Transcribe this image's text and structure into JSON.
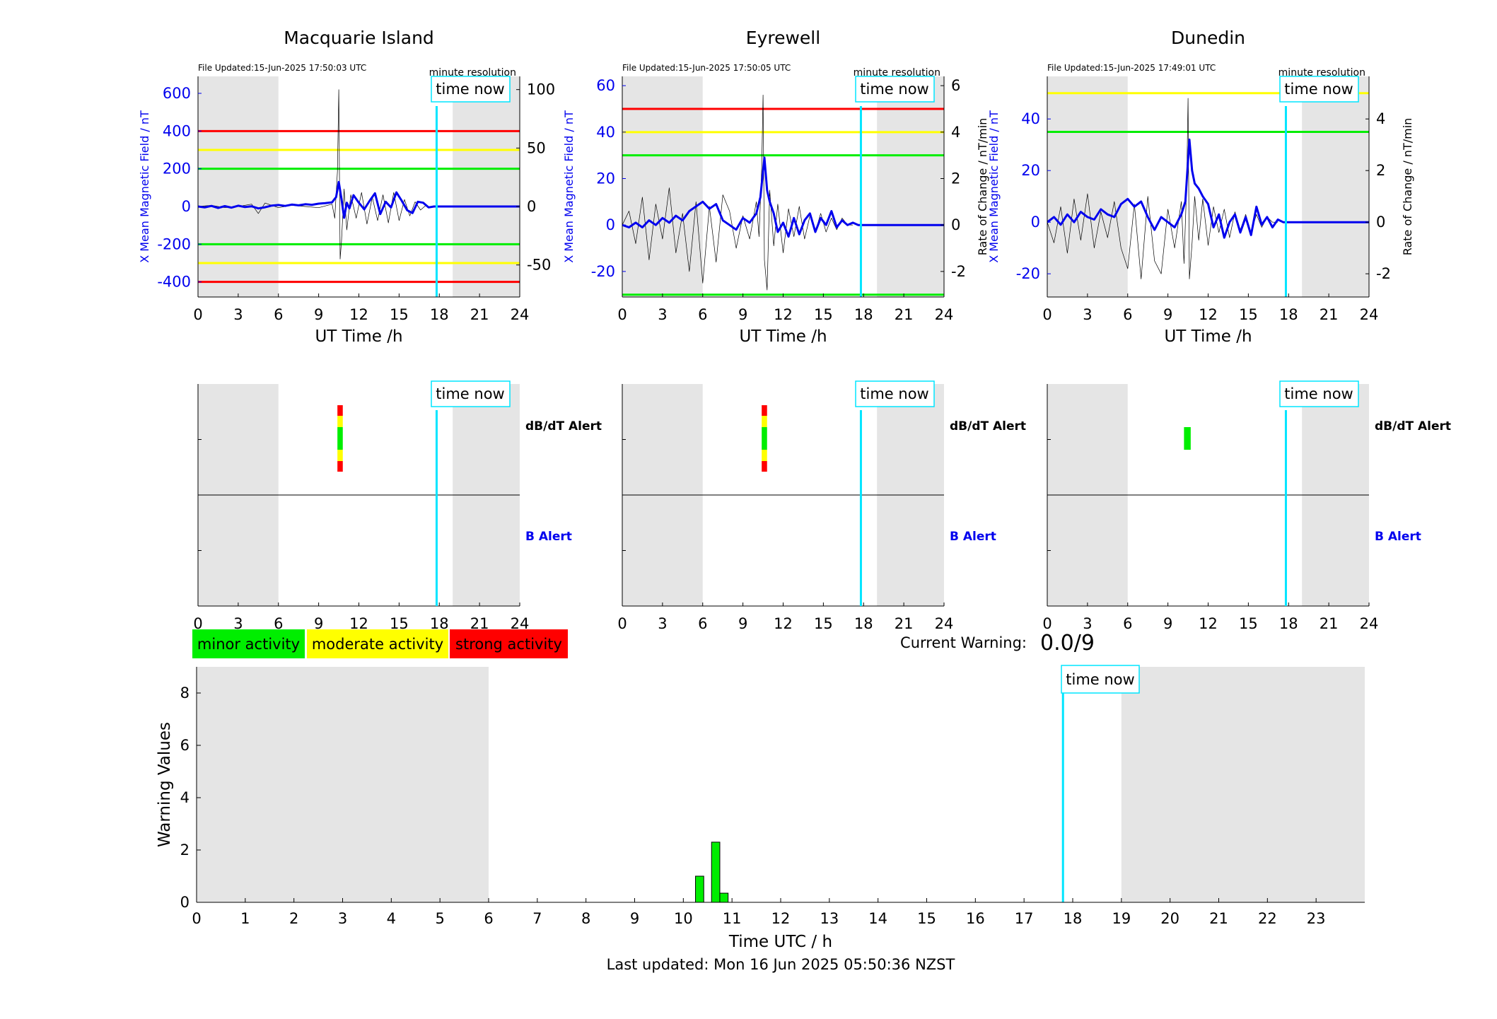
{
  "chart_data": [
    {
      "type": "line",
      "title": "Macquarie Island",
      "file_updated": "File Updated:15-Jun-2025 17:50:03 UTC",
      "resolution_label": "minute resolution",
      "time_now_label": "time now",
      "time_now": 17.8,
      "night_shading": [
        [
          0,
          6
        ],
        [
          19,
          24
        ]
      ],
      "xlabel": "UT Time /h",
      "xlim": [
        0,
        24
      ],
      "xticks": [
        0,
        3,
        6,
        9,
        12,
        15,
        18,
        21,
        24
      ],
      "ylabel_left": "X Mean Magnetic Field / nT",
      "ylim_left": [
        -480,
        690
      ],
      "yticks_left": [
        -400,
        -200,
        0,
        200,
        400,
        600
      ],
      "ylabel_right": "",
      "ylim_right": [
        -77.4,
        111.3
      ],
      "yticks_right": [
        -50,
        0,
        50,
        100
      ],
      "thresholds_left": [
        {
          "value": 400,
          "color": "#ff0000"
        },
        {
          "value": 300,
          "color": "#ffff00"
        },
        {
          "value": 200,
          "color": "#00ee00"
        },
        {
          "value": -200,
          "color": "#00ee00"
        },
        {
          "value": -300,
          "color": "#ffff00"
        },
        {
          "value": -400,
          "color": "#ff0000"
        }
      ],
      "series": [
        {
          "axis": "left",
          "color": "#0000ee",
          "width": 3,
          "x": [
            0,
            0.5,
            1,
            1.5,
            2,
            2.5,
            3,
            3.5,
            4,
            4.5,
            5,
            5.5,
            6,
            6.5,
            7,
            7.5,
            8,
            8.5,
            9,
            9.5,
            10,
            10.3,
            10.5,
            10.7,
            10.9,
            11.1,
            11.3,
            11.6,
            12,
            12.4,
            12.8,
            13.2,
            13.6,
            14,
            14.4,
            14.8,
            15.2,
            15.6,
            16,
            16.4,
            16.8,
            17.2,
            17.6,
            18,
            24
          ],
          "y": [
            0,
            -5,
            3,
            -8,
            2,
            -6,
            4,
            -3,
            1,
            -10,
            -4,
            5,
            8,
            3,
            10,
            6,
            12,
            9,
            15,
            18,
            22,
            50,
            130,
            40,
            -60,
            20,
            -10,
            60,
            20,
            -15,
            30,
            70,
            -40,
            25,
            -5,
            75,
            30,
            -20,
            -35,
            25,
            20,
            -5,
            0,
            0,
            0
          ]
        },
        {
          "axis": "right",
          "color": "#000000",
          "width": 0.7,
          "x": [
            0,
            1,
            2,
            3,
            4,
            4.5,
            5,
            6,
            7,
            8,
            9,
            10,
            10.2,
            10.4,
            10.5,
            10.6,
            10.7,
            10.9,
            11.1,
            11.4,
            11.8,
            12.2,
            12.6,
            13,
            13.4,
            13.8,
            14.2,
            14.6,
            15,
            15.4,
            15.8,
            16.2,
            16.6,
            17
          ],
          "y": [
            0,
            1,
            -1,
            0,
            2,
            -6,
            3,
            -1,
            1,
            0,
            -1,
            2,
            -10,
            30,
            100,
            -45,
            -30,
            15,
            -20,
            10,
            -10,
            12,
            -15,
            8,
            -12,
            10,
            -14,
            12,
            -12,
            6,
            -8,
            4,
            -3,
            1
          ]
        }
      ],
      "alerts": {
        "dbdt_label": "dB/dT Alert",
        "b_label": "B Alert",
        "dbdt_bar": {
          "x": [
            10.4,
            10.8
          ],
          "colors_top_to_bottom": [
            "#ff0000",
            "#ffff00",
            "#00ee00",
            "#ffff00",
            "#ff0000"
          ]
        }
      }
    },
    {
      "type": "line",
      "title": "Eyrewell",
      "file_updated": "File Updated:15-Jun-2025 17:50:05 UTC",
      "resolution_label": "minute resolution",
      "time_now_label": "time now",
      "time_now": 17.8,
      "night_shading": [
        [
          0,
          6
        ],
        [
          19,
          24
        ]
      ],
      "xlabel": "UT Time /h",
      "xlim": [
        0,
        24
      ],
      "xticks": [
        0,
        3,
        6,
        9,
        12,
        15,
        18,
        21,
        24
      ],
      "ylabel_left": "X Mean Magnetic Field / nT",
      "ylim_left": [
        -31,
        64
      ],
      "yticks_left": [
        -20,
        0,
        20,
        40,
        60
      ],
      "ylabel_right": "Rate of Change / nT/min",
      "ylim_right": [
        -3.1,
        6.4
      ],
      "yticks_right": [
        -2,
        0,
        2,
        4,
        6
      ],
      "thresholds_left": [
        {
          "value": 50,
          "color": "#ff0000"
        },
        {
          "value": 40,
          "color": "#ffff00"
        },
        {
          "value": 30,
          "color": "#00ee00"
        },
        {
          "value": -30,
          "color": "#00ee00"
        }
      ],
      "series": [
        {
          "axis": "left",
          "color": "#0000ee",
          "width": 3,
          "x": [
            0,
            0.5,
            1,
            1.5,
            2,
            2.5,
            3,
            3.5,
            4,
            4.5,
            5,
            5.5,
            6,
            6.5,
            7,
            7.5,
            8,
            8.5,
            9,
            9.5,
            10,
            10.3,
            10.6,
            10.8,
            11,
            11.3,
            11.6,
            12,
            12.4,
            12.8,
            13.2,
            13.6,
            14,
            14.4,
            14.8,
            15.2,
            15.6,
            16,
            16.4,
            16.8,
            17.2,
            17.6,
            18,
            24
          ],
          "y": [
            0,
            -1,
            1,
            -1,
            2,
            0,
            3,
            1,
            4,
            2,
            6,
            8,
            10,
            7,
            9,
            2,
            0,
            -2,
            3,
            1,
            5,
            12,
            29,
            15,
            10,
            5,
            -3,
            1,
            -5,
            3,
            -4,
            2,
            5,
            -3,
            3,
            0,
            6,
            -1,
            2,
            0,
            1,
            0,
            0,
            0
          ]
        },
        {
          "axis": "right",
          "color": "#000000",
          "width": 0.7,
          "x": [
            0,
            0.5,
            1,
            1.5,
            2,
            2.5,
            3,
            3.5,
            4,
            4.5,
            5,
            5.5,
            6,
            6.5,
            7,
            7.5,
            8,
            8.5,
            9,
            9.5,
            10,
            10.2,
            10.4,
            10.5,
            10.6,
            10.8,
            11,
            11.3,
            11.6,
            12,
            12.4,
            12.8,
            13.2,
            13.6,
            14,
            14.4,
            14.8,
            15.2,
            15.6,
            16,
            16.4,
            16.8,
            17.2
          ],
          "y": [
            0,
            0.6,
            -0.8,
            1.2,
            -1.5,
            0.9,
            -0.6,
            1.6,
            -1.2,
            0.5,
            -2,
            1,
            -2.5,
            0.8,
            -1.6,
            1.3,
            0.6,
            -1,
            0.4,
            -0.6,
            1,
            -0.5,
            2.5,
            5.6,
            -1.5,
            -2.8,
            1.5,
            -0.9,
            0.9,
            -1.2,
            0.7,
            -0.5,
            0.8,
            -0.6,
            0.4,
            -0.3,
            0.5,
            -0.3,
            0.3,
            -0.2,
            0.3,
            0,
            0
          ]
        }
      ],
      "alerts": {
        "dbdt_label": "dB/dT Alert",
        "b_label": "B Alert",
        "dbdt_bar": {
          "x": [
            10.4,
            10.8
          ],
          "colors_top_to_bottom": [
            "#ff0000",
            "#ffff00",
            "#00ee00",
            "#ffff00",
            "#ff0000"
          ]
        }
      }
    },
    {
      "type": "line",
      "title": "Dunedin",
      "file_updated": "File Updated:15-Jun-2025 17:49:01 UTC",
      "resolution_label": "minute resolution",
      "time_now_label": "time now",
      "time_now": 17.8,
      "night_shading": [
        [
          0,
          6
        ],
        [
          19,
          24
        ]
      ],
      "xlabel": "UT Time /h",
      "xlim": [
        0,
        24
      ],
      "xticks": [
        0,
        3,
        6,
        9,
        12,
        15,
        18,
        21,
        24
      ],
      "ylabel_left": "X Mean Magnetic Field / nT",
      "ylim_left": [
        -29,
        56.5
      ],
      "yticks_left": [
        -20,
        0,
        20,
        40
      ],
      "ylabel_right": "Rate of Change / nT/min",
      "ylim_right": [
        -2.9,
        5.65
      ],
      "yticks_right": [
        -2,
        0,
        2,
        4
      ],
      "thresholds_left": [
        {
          "value": 50,
          "color": "#ffff00"
        },
        {
          "value": 35,
          "color": "#00ee00"
        }
      ],
      "series": [
        {
          "axis": "left",
          "color": "#0000ee",
          "width": 3,
          "x": [
            0,
            0.5,
            1,
            1.5,
            2,
            2.5,
            3,
            3.5,
            4,
            4.5,
            5,
            5.5,
            6,
            6.5,
            7,
            7.5,
            8,
            8.5,
            9,
            9.5,
            10,
            10.3,
            10.6,
            10.8,
            11,
            11.3,
            11.6,
            12,
            12.4,
            12.8,
            13.2,
            13.6,
            14,
            14.4,
            14.8,
            15.2,
            15.6,
            16,
            16.4,
            16.8,
            17.2,
            17.6,
            18,
            24
          ],
          "y": [
            0,
            2,
            -1,
            3,
            0,
            4,
            2,
            1,
            5,
            3,
            2,
            7,
            9,
            6,
            8,
            2,
            -3,
            2,
            0,
            -2,
            3,
            8,
            32,
            20,
            15,
            13,
            10,
            7,
            -2,
            3,
            -6,
            0,
            3,
            -4,
            2,
            -5,
            6,
            -1,
            2,
            -2,
            1,
            0,
            0,
            0
          ]
        },
        {
          "axis": "right",
          "color": "#000000",
          "width": 0.7,
          "x": [
            0,
            0.5,
            1,
            1.5,
            2,
            2.5,
            3,
            3.5,
            4,
            4.5,
            5,
            5.5,
            6,
            6.5,
            7,
            7.5,
            8,
            8.5,
            9,
            9.5,
            10,
            10.2,
            10.4,
            10.5,
            10.6,
            10.8,
            11,
            11.3,
            11.6,
            12,
            12.4,
            12.8,
            13.2,
            13.6,
            14,
            14.4,
            14.8,
            15.2,
            15.6,
            16,
            16.4,
            16.8,
            17.2
          ],
          "y": [
            0,
            -0.8,
            0.6,
            -1.2,
            0.9,
            -0.7,
            1.1,
            -1,
            0.4,
            -0.6,
            0.8,
            -1,
            -1.8,
            0.7,
            -2.2,
            1,
            -1.5,
            -2,
            0.5,
            -1,
            0.8,
            -1.6,
            1.5,
            4.8,
            -2.2,
            -0.8,
            1,
            -0.7,
            0.9,
            -0.9,
            0.6,
            -0.4,
            0.5,
            -0.6,
            0.4,
            -0.3,
            0.3,
            -0.4,
            0.3,
            -0.2,
            0.2,
            0,
            0
          ]
        }
      ],
      "alerts": {
        "dbdt_label": "dB/dT Alert",
        "b_label": "B Alert",
        "dbdt_bar": {
          "x": [
            10.2,
            10.7
          ],
          "colors_top_to_bottom": [
            "#00ee00"
          ]
        }
      }
    },
    {
      "type": "bar",
      "xlabel": "Time UTC / h",
      "ylabel": "Warning Values",
      "xlim": [
        0,
        24
      ],
      "ylim": [
        0,
        9
      ],
      "xticks": [
        0,
        1,
        2,
        3,
        4,
        5,
        6,
        7,
        8,
        9,
        10,
        11,
        12,
        13,
        14,
        15,
        16,
        17,
        18,
        19,
        20,
        21,
        22,
        23
      ],
      "yticks": [
        0,
        2,
        4,
        6,
        8
      ],
      "night_shading": [
        [
          0,
          6
        ],
        [
          19,
          24
        ]
      ],
      "time_now": 17.8,
      "time_now_label": "time now",
      "bar_color": "#00ee00",
      "bars": [
        {
          "start": 10.25,
          "end": 10.42,
          "value": 1.0
        },
        {
          "start": 10.58,
          "end": 10.75,
          "value": 2.3
        },
        {
          "start": 10.75,
          "end": 10.92,
          "value": 0.35
        }
      ]
    }
  ],
  "legend": [
    {
      "label": "minor activity",
      "color": "#00ee00"
    },
    {
      "label": "moderate activity",
      "color": "#ffff00"
    },
    {
      "label": "strong activity",
      "color": "#ff0000"
    }
  ],
  "current_warning": {
    "label": "Current Warning:",
    "value": "0.0/9"
  },
  "footer": {
    "last_updated": "Last updated: Mon 16 Jun 2025 05:50:36 NZST"
  }
}
